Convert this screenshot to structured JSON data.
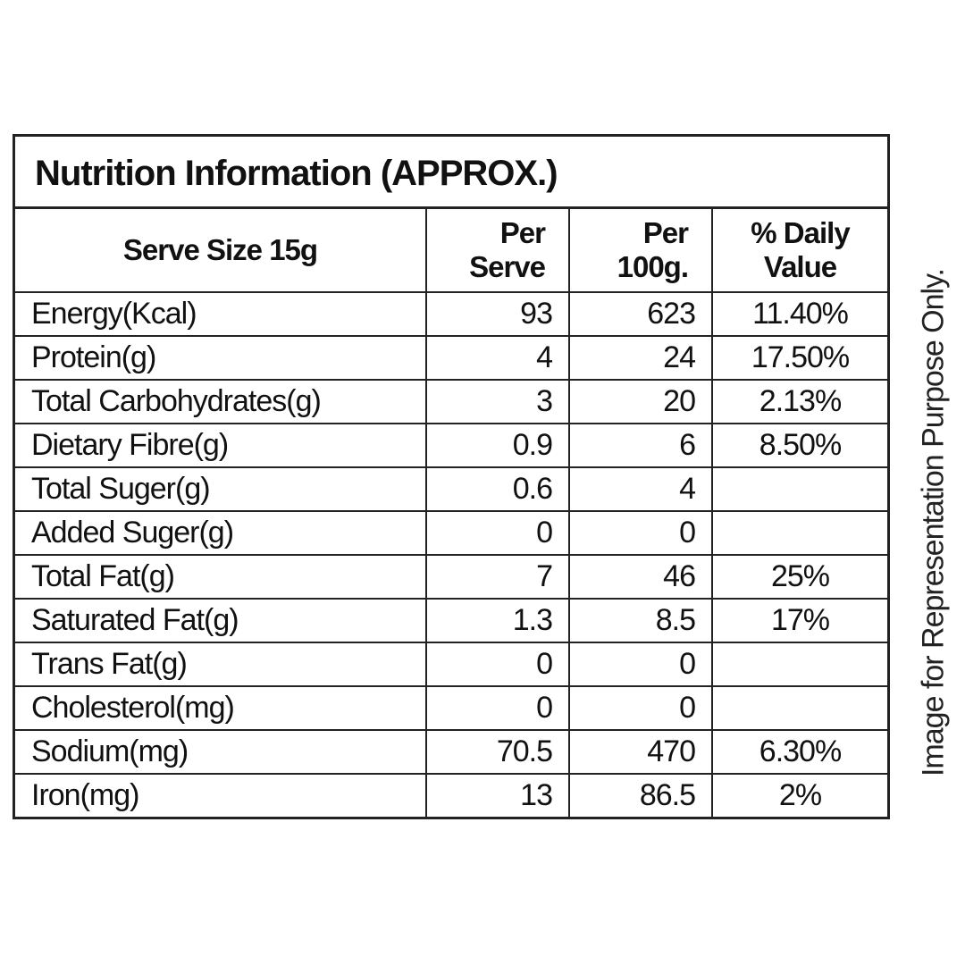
{
  "table": {
    "title": "Nutrition Information (APPROX.)",
    "header": [
      "Serve Size 15g",
      "Per Serve",
      "Per 100g.",
      "% Daily Value"
    ],
    "rows": [
      [
        "Energy(Kcal)",
        "93",
        "623",
        "11.40%"
      ],
      [
        "Protein(g)",
        "4",
        "24",
        "17.50%"
      ],
      [
        "Total Carbohydrates(g)",
        "3",
        "20",
        "2.13%"
      ],
      [
        "Dietary Fibre(g)",
        "0.9",
        "6",
        "8.50%"
      ],
      [
        "Total Suger(g)",
        "0.6",
        "4",
        null
      ],
      [
        "Added Suger(g)",
        "0",
        "0",
        null
      ],
      [
        "Total Fat(g)",
        "7",
        "46",
        "25%"
      ],
      [
        "Saturated Fat(g)",
        "1.3",
        "8.5",
        "17%"
      ],
      [
        "Trans Fat(g)",
        "0",
        "0",
        null
      ],
      [
        "Cholesterol(mg)",
        "0",
        "0",
        null
      ],
      [
        "Sodium(mg)",
        "70.5",
        "470",
        "6.30%"
      ],
      [
        "Iron(mg)",
        "13",
        "86.5",
        "2%"
      ]
    ]
  },
  "side_note": "Image for Representation Purpose Only."
}
